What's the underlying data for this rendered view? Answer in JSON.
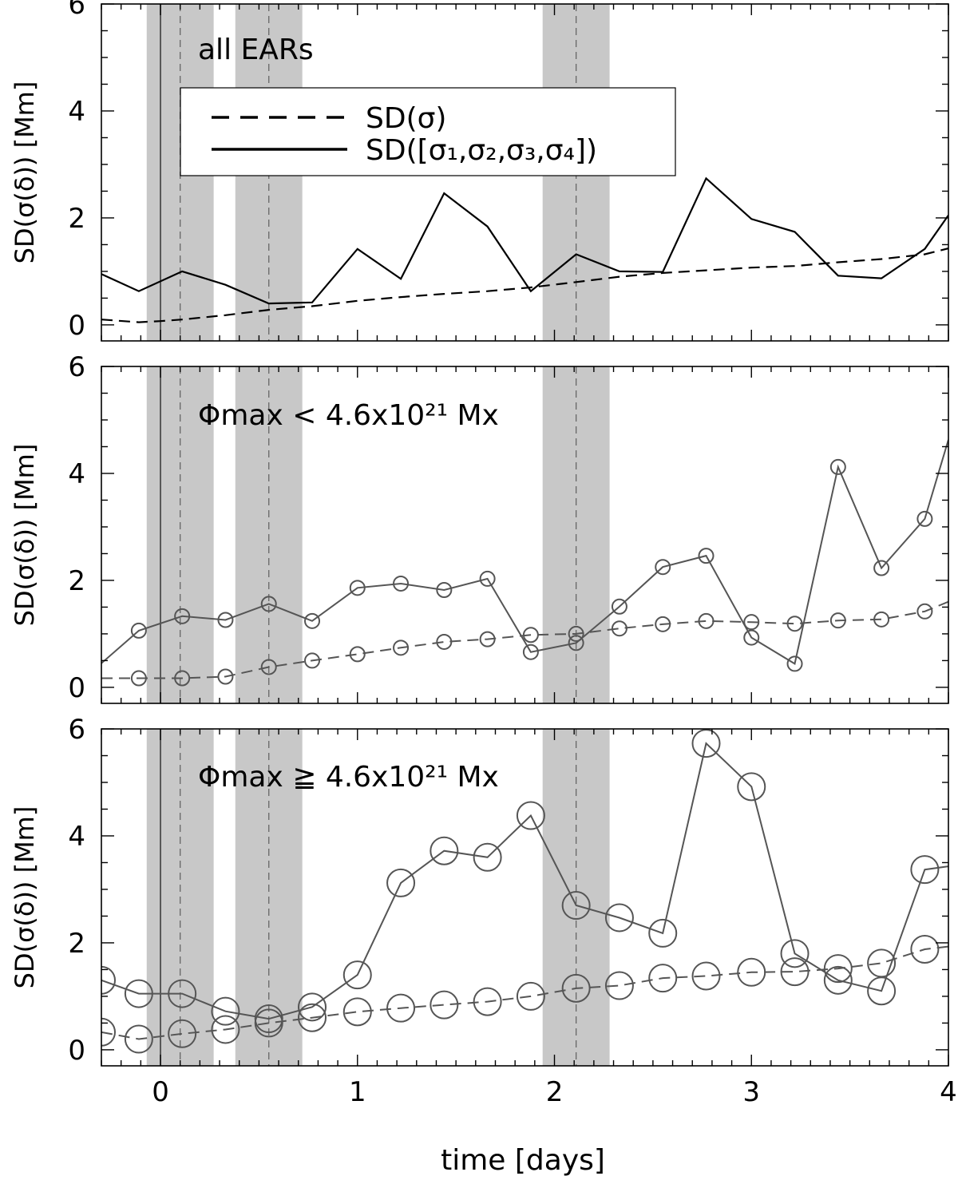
{
  "figure": {
    "xlabel": "time [days]",
    "xlim": [
      -0.3,
      4.0
    ],
    "xticks": [
      0,
      1,
      2,
      3,
      4
    ],
    "xtick_labels": [
      "0",
      "1",
      "2",
      "3",
      "4"
    ],
    "ylabel": "SD(σ(δ)) [Mm]",
    "ylim": [
      -0.3,
      6.0
    ],
    "yticks": [
      0,
      2,
      4,
      6
    ],
    "ytick_labels": [
      "0",
      "2",
      "4",
      "6"
    ],
    "shaded_bands": [
      [
        -0.07,
        0.27
      ],
      [
        0.38,
        0.72
      ],
      [
        1.94,
        2.28
      ]
    ],
    "vertical_solid_line": 0,
    "vertical_dashed_lines": [
      0.1,
      0.55,
      2.11
    ],
    "colors": {
      "band": "#c8c8c8",
      "black": "#000000",
      "gray": "#555555"
    }
  },
  "legend": {
    "dashed_label": "SD(σ)",
    "solid_label": "SD([σ₁,σ₂,σ₃,σ₄])"
  },
  "chart_data": [
    {
      "type": "line",
      "annotation": "all EARs",
      "xlabel": "time [days]",
      "ylabel": "SD(σ(δ)) [Mm]",
      "xlim": [
        -0.3,
        4.0
      ],
      "ylim": [
        -0.3,
        6.0
      ],
      "markers": "none",
      "series": [
        {
          "name": "SD(σ)",
          "style": "dashed",
          "color": "#000000",
          "x": [
            -0.3,
            -0.11,
            0.0,
            0.11,
            0.33,
            0.55,
            0.77,
            1.0,
            1.22,
            1.44,
            1.66,
            1.88,
            2.11,
            2.33,
            2.55,
            2.77,
            3.0,
            3.22,
            3.44,
            3.66,
            3.88,
            4.0
          ],
          "y": [
            0.1,
            0.05,
            0.07,
            0.1,
            0.18,
            0.28,
            0.35,
            0.45,
            0.52,
            0.58,
            0.63,
            0.7,
            0.8,
            0.9,
            0.97,
            1.02,
            1.07,
            1.1,
            1.17,
            1.23,
            1.32,
            1.43
          ]
        },
        {
          "name": "SD([σ1,σ2,σ3,σ4])",
          "style": "solid",
          "color": "#000000",
          "x": [
            -0.3,
            -0.11,
            0.11,
            0.33,
            0.55,
            0.77,
            1.0,
            1.22,
            1.44,
            1.66,
            1.88,
            2.11,
            2.33,
            2.55,
            2.77,
            3.0,
            3.22,
            3.44,
            3.66,
            3.88,
            4.0
          ],
          "y": [
            0.95,
            0.63,
            1.0,
            0.75,
            0.4,
            0.42,
            1.42,
            0.86,
            2.46,
            1.84,
            0.63,
            1.32,
            1.0,
            0.99,
            2.74,
            1.98,
            1.74,
            0.92,
            0.87,
            1.42,
            2.05
          ]
        }
      ]
    },
    {
      "type": "line",
      "annotation": "Φmax < 4.6x10²¹ Mx",
      "xlabel": "time [days]",
      "ylabel": "SD(σ(δ)) [Mm]",
      "xlim": [
        -0.3,
        4.0
      ],
      "ylim": [
        -0.3,
        6.0
      ],
      "markers": "circle",
      "marker_radius": 9,
      "series": [
        {
          "name": "SD(σ)",
          "style": "dashed",
          "color": "#555555",
          "x": [
            -0.3,
            -0.11,
            0.11,
            0.33,
            0.55,
            0.77,
            1.0,
            1.22,
            1.44,
            1.66,
            1.88,
            2.11,
            2.33,
            2.55,
            2.77,
            3.0,
            3.22,
            3.44,
            3.66,
            3.88,
            4.0
          ],
          "y": [
            0.17,
            0.17,
            0.17,
            0.2,
            0.38,
            0.5,
            0.62,
            0.74,
            0.85,
            0.9,
            0.98,
            1.0,
            1.1,
            1.18,
            1.24,
            1.22,
            1.19,
            1.25,
            1.27,
            1.42,
            1.6
          ],
          "marker_x": [
            -0.11,
            0.11,
            0.33,
            0.55,
            0.77,
            1.0,
            1.22,
            1.44,
            1.66,
            1.88,
            2.11,
            2.33,
            2.55,
            2.77,
            3.0,
            3.22,
            3.44,
            3.66,
            3.88
          ]
        },
        {
          "name": "SD([σ1,σ2,σ3,σ4])",
          "style": "solid",
          "color": "#555555",
          "x": [
            -0.3,
            -0.11,
            0.11,
            0.33,
            0.55,
            0.77,
            1.0,
            1.22,
            1.44,
            1.66,
            1.88,
            2.11,
            2.33,
            2.55,
            2.77,
            3.0,
            3.22,
            3.44,
            3.66,
            3.88,
            4.0
          ],
          "y": [
            0.45,
            1.06,
            1.33,
            1.26,
            1.56,
            1.24,
            1.86,
            1.94,
            1.82,
            2.03,
            0.66,
            0.83,
            1.51,
            2.25,
            2.46,
            0.93,
            0.44,
            4.12,
            2.23,
            3.15,
            4.63
          ],
          "marker_x": [
            -0.11,
            0.11,
            0.33,
            0.55,
            0.77,
            1.0,
            1.22,
            1.44,
            1.66,
            1.88,
            2.11,
            2.33,
            2.55,
            2.77,
            3.0,
            3.22,
            3.44,
            3.66,
            3.88
          ]
        }
      ]
    },
    {
      "type": "line",
      "annotation": "Φmax ≧ 4.6x10²¹ Mx",
      "xlabel": "time [days]",
      "ylabel": "SD(σ(δ)) [Mm]",
      "xlim": [
        -0.3,
        4.0
      ],
      "ylim": [
        -0.3,
        6.0
      ],
      "markers": "circle",
      "marker_radius": 17,
      "series": [
        {
          "name": "SD(σ)",
          "style": "dashed",
          "color": "#555555",
          "x": [
            -0.3,
            -0.11,
            0.11,
            0.33,
            0.55,
            0.77,
            1.0,
            1.22,
            1.44,
            1.66,
            1.88,
            2.11,
            2.33,
            2.55,
            2.77,
            3.0,
            3.22,
            3.44,
            3.66,
            3.88,
            4.0
          ],
          "y": [
            0.33,
            0.2,
            0.3,
            0.38,
            0.5,
            0.6,
            0.71,
            0.78,
            0.84,
            0.9,
            1.0,
            1.15,
            1.2,
            1.34,
            1.38,
            1.45,
            1.46,
            1.52,
            1.62,
            1.88,
            1.93
          ],
          "marker_x": [
            -0.3,
            -0.11,
            0.11,
            0.33,
            0.55,
            0.77,
            1.0,
            1.22,
            1.44,
            1.66,
            1.88,
            2.11,
            2.33,
            2.55,
            2.77,
            3.0,
            3.22,
            3.44,
            3.66,
            3.88
          ]
        },
        {
          "name": "SD([σ1,σ2,σ3,σ4])",
          "style": "solid",
          "color": "#555555",
          "x": [
            -0.3,
            -0.11,
            0.11,
            0.33,
            0.55,
            0.77,
            1.0,
            1.22,
            1.44,
            1.66,
            1.88,
            2.11,
            2.33,
            2.55,
            2.77,
            3.0,
            3.22,
            3.44,
            3.66,
            3.88,
            4.0
          ],
          "y": [
            1.3,
            1.05,
            1.05,
            0.72,
            0.58,
            0.8,
            1.4,
            3.12,
            3.72,
            3.6,
            4.38,
            2.7,
            2.47,
            2.18,
            5.73,
            4.92,
            1.8,
            1.3,
            1.1,
            3.37,
            3.43
          ],
          "marker_x": [
            -0.3,
            -0.11,
            0.11,
            0.33,
            0.55,
            0.77,
            1.0,
            1.22,
            1.44,
            1.66,
            1.88,
            2.11,
            2.33,
            2.55,
            2.77,
            3.0,
            3.22,
            3.44,
            3.66,
            3.88
          ]
        }
      ]
    }
  ]
}
